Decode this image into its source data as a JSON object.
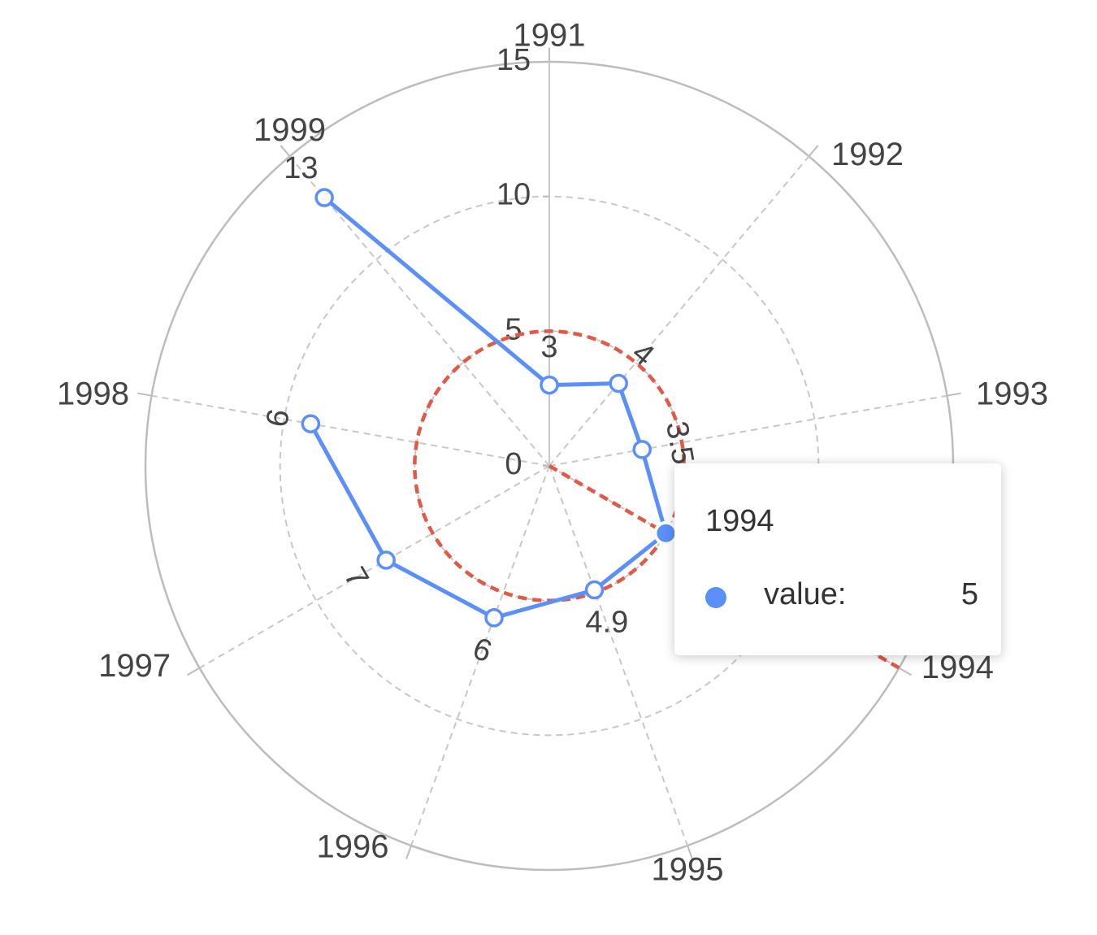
{
  "chart_data": {
    "type": "radar",
    "categories": [
      "1991",
      "1992",
      "1993",
      "1994",
      "1995",
      "1996",
      "1997",
      "1998",
      "1999"
    ],
    "series": [
      {
        "values": [
          3,
          4,
          3.5,
          5,
          4.9,
          6,
          7,
          9,
          13
        ],
        "color": "#5b8ff9"
      }
    ],
    "radial_ticks": [
      0,
      5,
      10,
      15
    ],
    "rlim": [
      0,
      15
    ],
    "data_labels": [
      "3",
      "4",
      "3.5",
      "5",
      "4.9",
      "6",
      "7",
      "9",
      "13"
    ],
    "grid": true,
    "active_index": 3,
    "crosshair": {
      "value": 5,
      "color": "#e05a47"
    }
  },
  "tooltip": {
    "title": "1994",
    "label": "value:",
    "value": "5",
    "marker_color": "#5b8ff9"
  }
}
